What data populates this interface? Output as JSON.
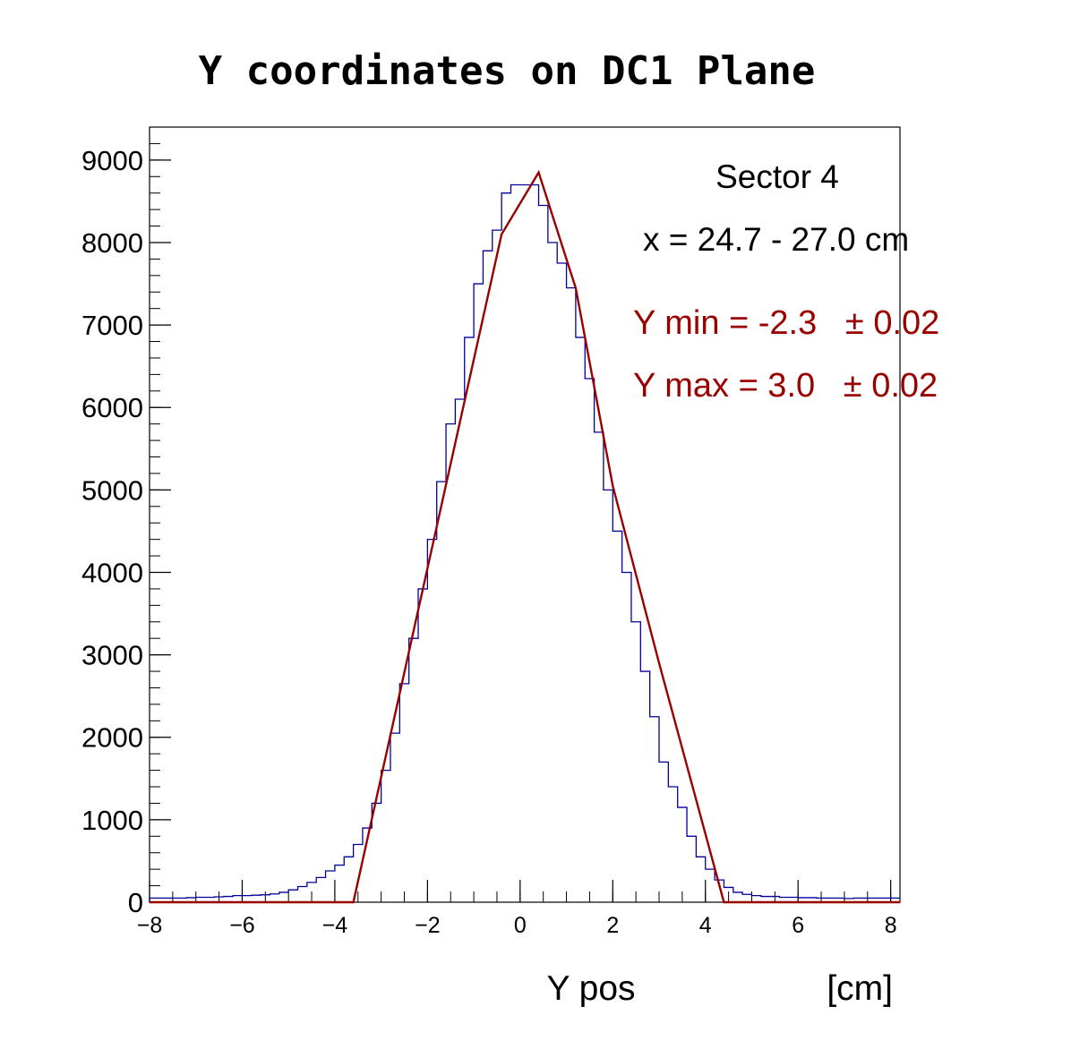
{
  "chart_data": {
    "type": "histogram",
    "title": "Y coordinates on DC1 Plane",
    "xlabel": "Y pos",
    "xunit": "[cm]",
    "ylabel": "",
    "xlim": [
      -8,
      8.2
    ],
    "ylim": [
      0,
      9400
    ],
    "x_ticks": [
      -8,
      -6,
      -4,
      -2,
      0,
      2,
      4,
      6,
      8
    ],
    "x_tick_labels": [
      "−8",
      "−6",
      "−4",
      "−2",
      "0",
      "2",
      "4",
      "6",
      "8"
    ],
    "y_ticks": [
      0,
      1000,
      2000,
      3000,
      4000,
      5000,
      6000,
      7000,
      8000,
      9000
    ],
    "y_tick_labels": [
      "0",
      "1000",
      "2000",
      "3000",
      "4000",
      "5000",
      "6000",
      "7000",
      "8000",
      "9000"
    ],
    "grid": false,
    "legend": "none",
    "histogram": {
      "bin_edges_start": -8.0,
      "bin_width": 0.2,
      "counts": [
        50,
        50,
        50,
        50,
        55,
        60,
        60,
        65,
        70,
        80,
        80,
        85,
        90,
        100,
        120,
        150,
        190,
        240,
        300,
        380,
        450,
        550,
        700,
        900,
        1200,
        1600,
        2050,
        2650,
        3200,
        3800,
        4400,
        5100,
        5800,
        6100,
        6850,
        7500,
        7900,
        8150,
        8600,
        8700,
        8700,
        8700,
        8450,
        8000,
        7750,
        7450,
        6850,
        6350,
        5700,
        5000,
        4500,
        4000,
        3400,
        2800,
        2250,
        1700,
        1400,
        1150,
        800,
        550,
        400,
        270,
        180,
        120,
        95,
        80,
        70,
        70,
        60,
        60,
        55,
        55,
        50,
        50,
        50,
        45,
        50,
        50,
        50,
        50,
        50
      ],
      "color": "#000099"
    },
    "fit": {
      "type": "piecewise-linear",
      "x": [
        -3.6,
        -0.4,
        0.4,
        1.2,
        2.0,
        3.0,
        4.4,
        8.2
      ],
      "y": [
        0,
        8100,
        8850,
        7450,
        5050,
        2900,
        0,
        0
      ],
      "x_start": -8.0,
      "color": "#990000"
    },
    "annotations": [
      {
        "text": "Sector 4",
        "color": "#000000"
      },
      {
        "text": "x = 24.7 - 27.0 cm",
        "color": "#000000"
      },
      {
        "text": "Y min = -2.3   ± 0.02",
        "color": "#990000"
      },
      {
        "text": "Y max = 3.0   ± 0.02",
        "color": "#990000"
      }
    ]
  }
}
